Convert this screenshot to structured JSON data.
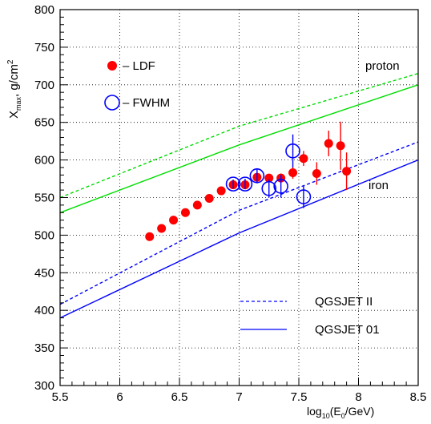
{
  "chart_data": {
    "type": "scatter",
    "xlabel": "log10(E0/GeV)",
    "ylabel": "Xmax, g/cm2",
    "xlim": [
      5.5,
      8.5
    ],
    "ylim": [
      300,
      800
    ],
    "xticks": [
      5.5,
      6,
      6.5,
      7,
      7.5,
      8,
      8.5
    ],
    "xtick_labels": [
      "5.5",
      "6",
      "6.5",
      "7",
      "7.5",
      "8",
      "8.5"
    ],
    "yticks": [
      300,
      350,
      400,
      450,
      500,
      550,
      600,
      650,
      700,
      750,
      800
    ],
    "ytick_labels": [
      "300",
      "350",
      "400",
      "450",
      "500",
      "550",
      "600",
      "650",
      "700",
      "750",
      "800"
    ],
    "grid": true,
    "legend_placement": "top-left and bottom-right",
    "markers": {
      "ldf": {
        "label": "– LDF",
        "color": "#ff0000",
        "style": "filled-circle"
      },
      "fwhm": {
        "label": "– FWHM",
        "color": "#0000ff",
        "style": "open-circle"
      }
    },
    "line_legend": {
      "qgsjet_ii": {
        "label": "QGSJET II",
        "color": "#0000ff",
        "style": "dashed"
      },
      "qgsjet_01": {
        "label": "QGSJET 01",
        "color": "#0000ff",
        "style": "solid"
      }
    },
    "curve_labels": {
      "proton": "proton",
      "iron": "iron"
    },
    "series": [
      {
        "name": "LDF",
        "color": "#ff0000",
        "points": [
          {
            "x": 6.25,
            "y": 498,
            "err": 0
          },
          {
            "x": 6.35,
            "y": 509,
            "err": 0
          },
          {
            "x": 6.45,
            "y": 520,
            "err": 0
          },
          {
            "x": 6.55,
            "y": 530,
            "err": 0
          },
          {
            "x": 6.65,
            "y": 540,
            "err": 0
          },
          {
            "x": 6.75,
            "y": 549,
            "err": 0
          },
          {
            "x": 6.85,
            "y": 559,
            "err": 0
          },
          {
            "x": 6.95,
            "y": 567,
            "err": 0
          },
          {
            "x": 7.05,
            "y": 567,
            "err": 0
          },
          {
            "x": 7.15,
            "y": 577,
            "err": 0
          },
          {
            "x": 7.25,
            "y": 576,
            "err": 0
          },
          {
            "x": 7.35,
            "y": 576,
            "err": 6
          },
          {
            "x": 7.45,
            "y": 583,
            "err": 8
          },
          {
            "x": 7.54,
            "y": 602,
            "err": 10
          },
          {
            "x": 7.65,
            "y": 582,
            "err": 15
          },
          {
            "x": 7.75,
            "y": 622,
            "err": 17
          },
          {
            "x": 7.85,
            "y": 619,
            "err": 32
          },
          {
            "x": 7.9,
            "y": 585,
            "err": 25
          }
        ]
      },
      {
        "name": "FWHM",
        "color": "#0000ff",
        "points": [
          {
            "x": 6.95,
            "y": 568,
            "err": 6
          },
          {
            "x": 7.05,
            "y": 568,
            "err": 7
          },
          {
            "x": 7.15,
            "y": 579,
            "err": 10
          },
          {
            "x": 7.25,
            "y": 562,
            "err": 12
          },
          {
            "x": 7.35,
            "y": 565,
            "err": 15
          },
          {
            "x": 7.45,
            "y": 612,
            "err": 22
          },
          {
            "x": 7.54,
            "y": 551,
            "err": 15
          }
        ]
      }
    ],
    "curves": [
      {
        "group": "proton",
        "model": "QGSJET II",
        "color": "#00dd00",
        "style": "dashed",
        "points": [
          [
            5.5,
            550
          ],
          [
            7.0,
            645
          ],
          [
            8.5,
            715
          ]
        ]
      },
      {
        "group": "proton",
        "model": "QGSJET 01",
        "color": "#00dd00",
        "style": "solid",
        "points": [
          [
            5.5,
            530
          ],
          [
            7.0,
            620
          ],
          [
            8.5,
            700
          ]
        ]
      },
      {
        "group": "iron",
        "model": "QGSJET II",
        "color": "#0000ff",
        "style": "dashed",
        "points": [
          [
            5.5,
            408
          ],
          [
            7.0,
            533
          ],
          [
            8.5,
            624
          ]
        ]
      },
      {
        "group": "iron",
        "model": "QGSJET 01",
        "color": "#0000ff",
        "style": "solid",
        "points": [
          [
            5.5,
            390
          ],
          [
            7.0,
            503
          ],
          [
            8.5,
            600
          ]
        ]
      }
    ]
  }
}
